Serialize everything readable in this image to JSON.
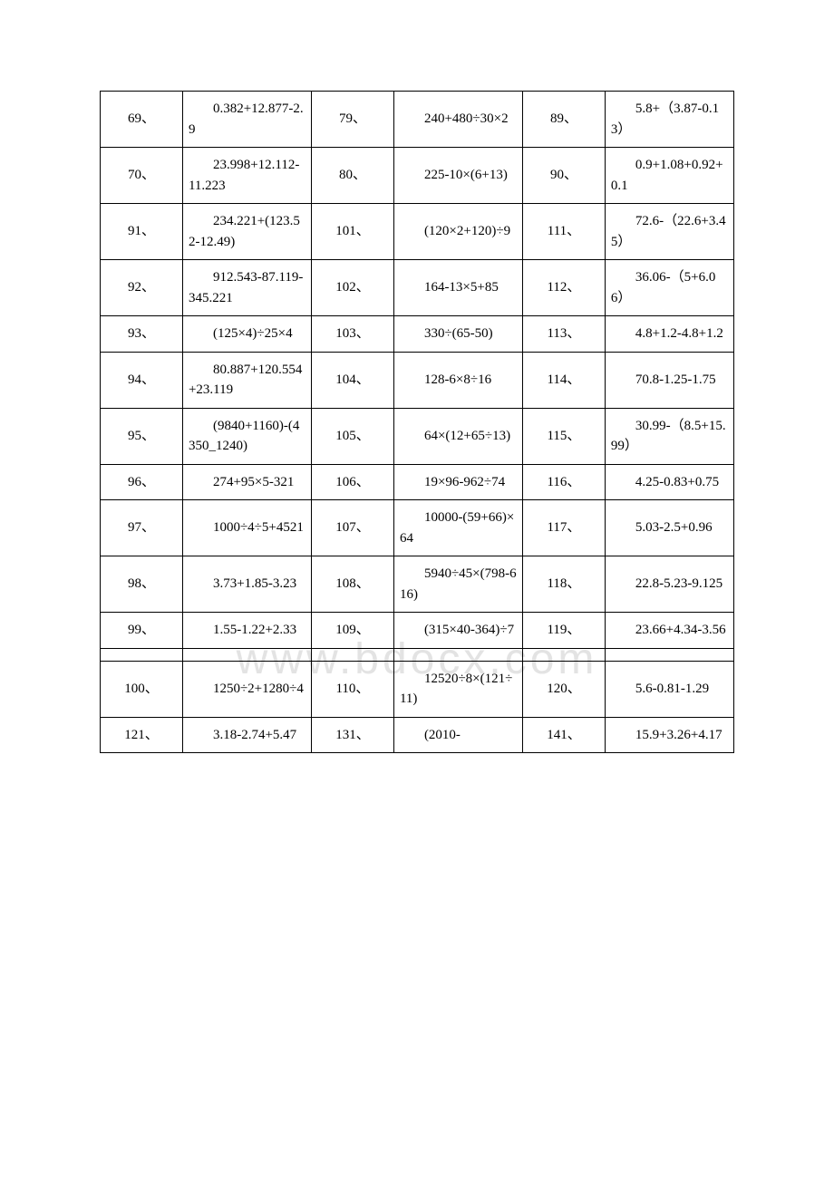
{
  "watermark": "www.bdocx.com",
  "table": {
    "border_color": "#000000",
    "background_color": "#ffffff",
    "text_color": "#000000",
    "font_size": 15,
    "columns": [
      {
        "type": "num",
        "width": "13%"
      },
      {
        "type": "expr",
        "width": "20.3%"
      },
      {
        "type": "num",
        "width": "13%"
      },
      {
        "type": "expr",
        "width": "20.3%"
      },
      {
        "type": "num",
        "width": "13%"
      },
      {
        "type": "expr",
        "width": "20.3%"
      }
    ],
    "rows": [
      [
        "69、",
        "0.382+12.877-2.9",
        "79、",
        "240+480÷30×2",
        "89、",
        "5.8+（3.87-0.13）"
      ],
      [
        "70、",
        "23.998+12.112-11.223",
        "80、",
        "225-10×(6+13)",
        "90、",
        "0.9+1.08+0.92+0.1"
      ],
      [
        "91、",
        "234.221+(123.52-12.49)",
        "101、",
        "(120×2+120)÷9",
        "111、",
        "72.6-（22.6+3.45）"
      ],
      [
        "92、",
        "912.543-87.119-345.221",
        "102、",
        "164-13×5+85",
        "112、",
        "36.06-（5+6.06）"
      ],
      [
        "93、",
        "(125×4)÷25×4",
        "103、",
        "330÷(65-50)",
        "113、",
        "4.8+1.2-4.8+1.2"
      ],
      [
        "94、",
        "80.887+120.554+23.119",
        "104、",
        "128-6×8÷16",
        "114、",
        "70.8-1.25-1.75"
      ],
      [
        "95、",
        "(9840+1160)-(4350_1240)",
        "105、",
        "64×(12+65÷13)",
        "115、",
        "30.99-（8.5+15.99）"
      ],
      [
        "96、",
        "274+95×5-321",
        "106、",
        "19×96-962÷74",
        "116、",
        "4.25-0.83+0.75"
      ],
      [
        "97、",
        "1000÷4÷5+4521",
        "107、",
        "10000-(59+66)×64",
        "117、",
        "5.03-2.5+0.96"
      ],
      [
        "98、",
        "3.73+1.85-3.23",
        "108、",
        "5940÷45×(798-616)",
        "118、",
        "22.8-5.23-9.125"
      ],
      [
        "99、",
        "1.55-1.22+2.33",
        "109、",
        "(315×40-364)÷7",
        "119、",
        "23.66+4.34-3.56"
      ],
      "EMPTY",
      [
        "100、",
        "1250÷2+1280÷4",
        "110、",
        "12520÷8×(121÷11)",
        "120、",
        "5.6-0.81-1.29"
      ],
      [
        "121、",
        "3.18-2.74+5.47",
        "131、",
        "(2010-",
        "141、",
        "15.9+3.26+4.17"
      ]
    ]
  }
}
